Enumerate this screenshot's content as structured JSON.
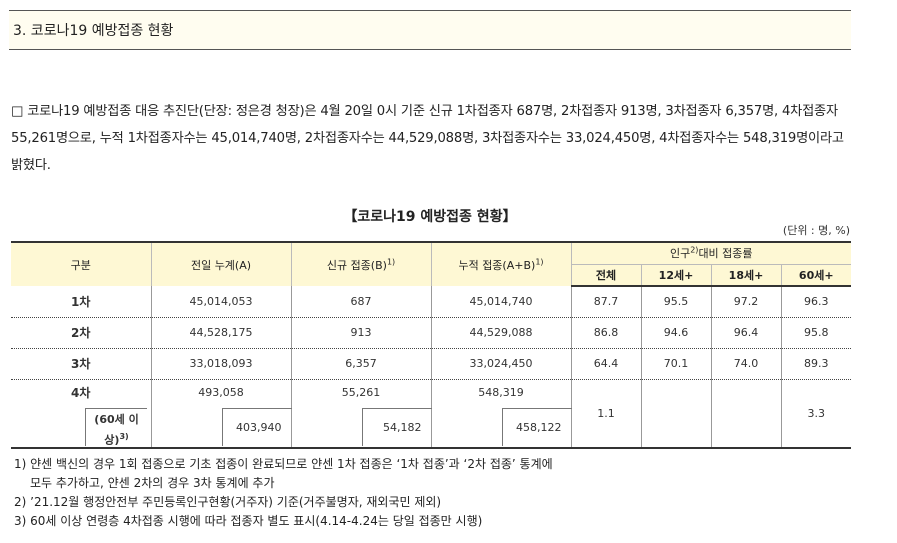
{
  "section_title": "3. 코로나19 예방접종 현황",
  "intro_text": "□ 코로나19 예방접종 대응 추진단(단장: 정은경 청장)은 4월 20일 0시 기준 신규 1차접종자 687명, 2차접종자 913명, 3차접종자 6,357명, 4차접종자 55,261명으로, 누적 1차접종자수는 45,014,740명, 2차접종자수는 44,529,088명, 3차접종자수는 33,024,450명, 4차접종자수는 548,319명이라고 밝혔다.",
  "table_title": "【코로나19 예방접종 현황】",
  "unit": "(단위 : 명, %)",
  "headers": {
    "category": "구분",
    "prev_cumulative": "전일 누계(A)",
    "new": "신규 접종(B)",
    "new_sup": "1)",
    "cumulative": "누적 접종(A+B)",
    "cumulative_sup": "1)",
    "rate_group_pre": "인구",
    "rate_group_sup": "2)",
    "rate_group_post": "대비 접종률",
    "total": "전체",
    "age12": "12세+",
    "age18": "18세+",
    "age60": "60세+"
  },
  "rows": [
    {
      "label": "1차",
      "prev": "45,014,053",
      "new": "687",
      "cum": "45,014,740",
      "total": "87.7",
      "a12": "95.5",
      "a18": "97.2",
      "a60": "96.3"
    },
    {
      "label": "2차",
      "prev": "44,528,175",
      "new": "913",
      "cum": "44,529,088",
      "total": "86.8",
      "a12": "94.6",
      "a18": "96.4",
      "a60": "95.8"
    },
    {
      "label": "3차",
      "prev": "33,018,093",
      "new": "6,357",
      "cum": "33,024,450",
      "total": "64.4",
      "a12": "70.1",
      "a18": "74.0",
      "a60": "89.3"
    },
    {
      "label": "4차",
      "prev": "493,058",
      "new": "55,261",
      "cum": "548,319",
      "total": "1.1",
      "a60": "3.3"
    }
  ],
  "sub_row": {
    "label_line1": "(60세 이",
    "label_line2": "상)",
    "label_sup": "3)",
    "prev": "403,940",
    "new": "54,182",
    "cum": "458,122"
  },
  "notes": {
    "n1_line1": "1) 얀센 백신의 경우 1회 접종으로 기초 접종이 완료되므로 얀센 1차 접종은 ‘1차 접종’과 ‘2차 접종’ 통계에",
    "n1_line2": "모두 추가하고, 얀센 2차의 경우 3차 통계에 추가",
    "n2": "2) ’21.12월 행정안전부 주민등록인구현황(거주자) 기준(거주불명자, 재외국민 제외)",
    "n3": "3) 60세 이상 연령층 4차접종 시행에 따라 접종자 별도 표시(4.14-4.24는 당일 접종만 시행)"
  }
}
